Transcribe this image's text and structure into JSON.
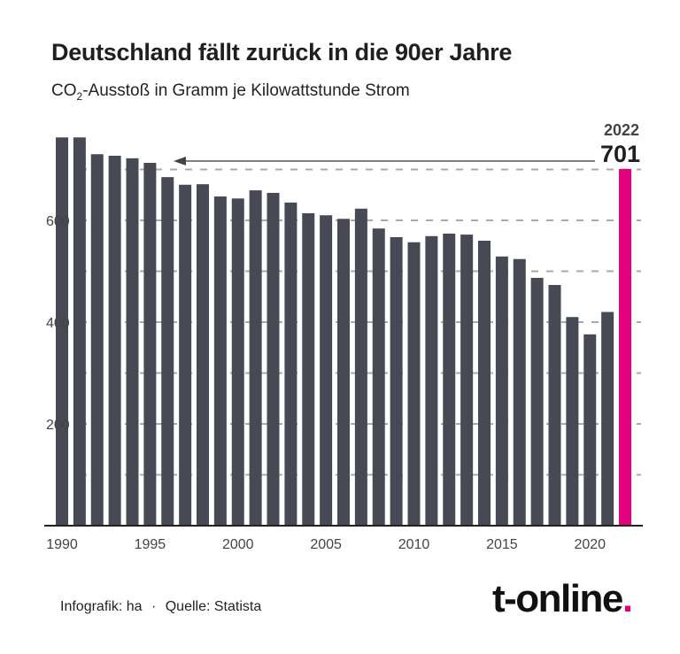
{
  "colors": {
    "bar": "#474a55",
    "highlight": "#e3007d",
    "grid": "#a8a8ae"
  },
  "chart_data": {
    "type": "bar",
    "title": "Deutschland fällt zurück in die 90er Jahre",
    "subtitle_pre": "CO",
    "subtitle_sub": "2",
    "subtitle_post": "-Ausstoß in Gramm je Kilowattstunde Strom",
    "categories": [
      1990,
      1991,
      1992,
      1993,
      1994,
      1995,
      1996,
      1997,
      1998,
      1999,
      2000,
      2001,
      2002,
      2003,
      2004,
      2005,
      2006,
      2007,
      2008,
      2009,
      2010,
      2011,
      2012,
      2013,
      2014,
      2015,
      2016,
      2017,
      2018,
      2019,
      2020,
      2021,
      2022
    ],
    "values": [
      763,
      763,
      730,
      727,
      722,
      713,
      685,
      670,
      671,
      647,
      643,
      659,
      654,
      635,
      614,
      610,
      603,
      623,
      584,
      567,
      557,
      569,
      574,
      572,
      560,
      529,
      524,
      487,
      473,
      410,
      376,
      420,
      701
    ],
    "highlight": {
      "year": "2022",
      "value": "701"
    },
    "ylim": [
      0,
      800
    ],
    "yticks": [
      200,
      400,
      600
    ],
    "gridlines": [
      100,
      200,
      300,
      400,
      500,
      600,
      700
    ],
    "xticks": [
      1990,
      1995,
      2000,
      2005,
      2010,
      2015,
      2020
    ],
    "annotation": "arrow from 2022 level back to 1996",
    "grid": true
  },
  "footer": {
    "credit": "Infografik: ha",
    "separator": "·",
    "source": "Quelle: Statista"
  },
  "logo": {
    "text": "t-online",
    "dot": "."
  }
}
